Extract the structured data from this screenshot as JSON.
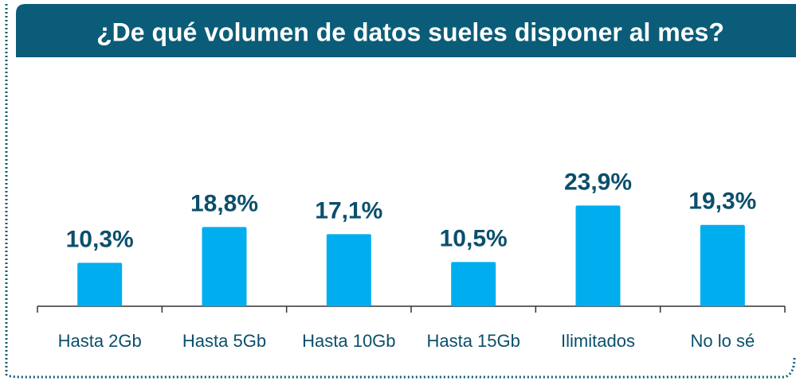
{
  "chart_data": {
    "type": "bar",
    "title": "¿De qué volumen de datos sueles disponer al mes?",
    "categories": [
      "Hasta 2Gb",
      "Hasta 5Gb",
      "Hasta 10Gb",
      "Hasta 15Gb",
      "Ilimitados",
      "No lo sé"
    ],
    "values": [
      10.3,
      18.8,
      17.1,
      10.5,
      23.9,
      19.3
    ],
    "value_labels": [
      "10,3%",
      "18,8%",
      "17,1%",
      "10,5%",
      "23,9%",
      "19,3%"
    ],
    "color": "#00aeef"
  }
}
